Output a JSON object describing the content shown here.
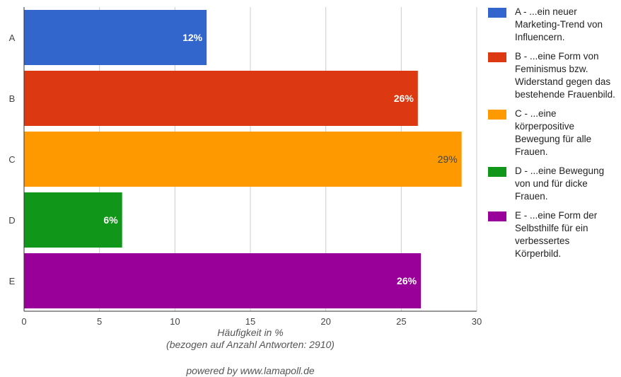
{
  "chart_data": {
    "type": "bar",
    "orientation": "horizontal",
    "categories": [
      "A",
      "B",
      "C",
      "D",
      "E"
    ],
    "values": [
      12.1,
      26.1,
      29.0,
      6.5,
      26.3
    ],
    "value_labels": [
      "12%",
      "26%",
      "29%",
      "6%",
      "26%"
    ],
    "colors": [
      "#3366cc",
      "#dc3912",
      "#ff9900",
      "#109618",
      "#990099"
    ],
    "label_colors": [
      "#ffffff",
      "#ffffff",
      "#444444",
      "#ffffff",
      "#ffffff"
    ],
    "xlim": [
      0,
      30
    ],
    "xticks": [
      0,
      5,
      10,
      15,
      20,
      25,
      30
    ],
    "grid": true,
    "legend_position": "right",
    "xlabel": "Häufigkeit in %",
    "xlabel_sub": "(bezogen auf Anzahl Antworten: 2910)",
    "legend": [
      {
        "label": "A - ...ein neuer Marketing-Trend von Influencern.",
        "color": "#3366cc"
      },
      {
        "label": "B - ...eine Form von Feminismus bzw. Widerstand gegen das bestehende Frauenbild.",
        "color": "#dc3912"
      },
      {
        "label": "C - ...eine körperpositive Bewegung für alle Frauen.",
        "color": "#ff9900"
      },
      {
        "label": "D - ...eine Bewegung von und für dicke Frauen.",
        "color": "#109618"
      },
      {
        "label": "E - ...eine Form der Selbsthilfe für ein verbessertes Körperbild.",
        "color": "#990099"
      }
    ]
  },
  "footer": {
    "powered_by": "powered by www.lamapoll.de"
  }
}
